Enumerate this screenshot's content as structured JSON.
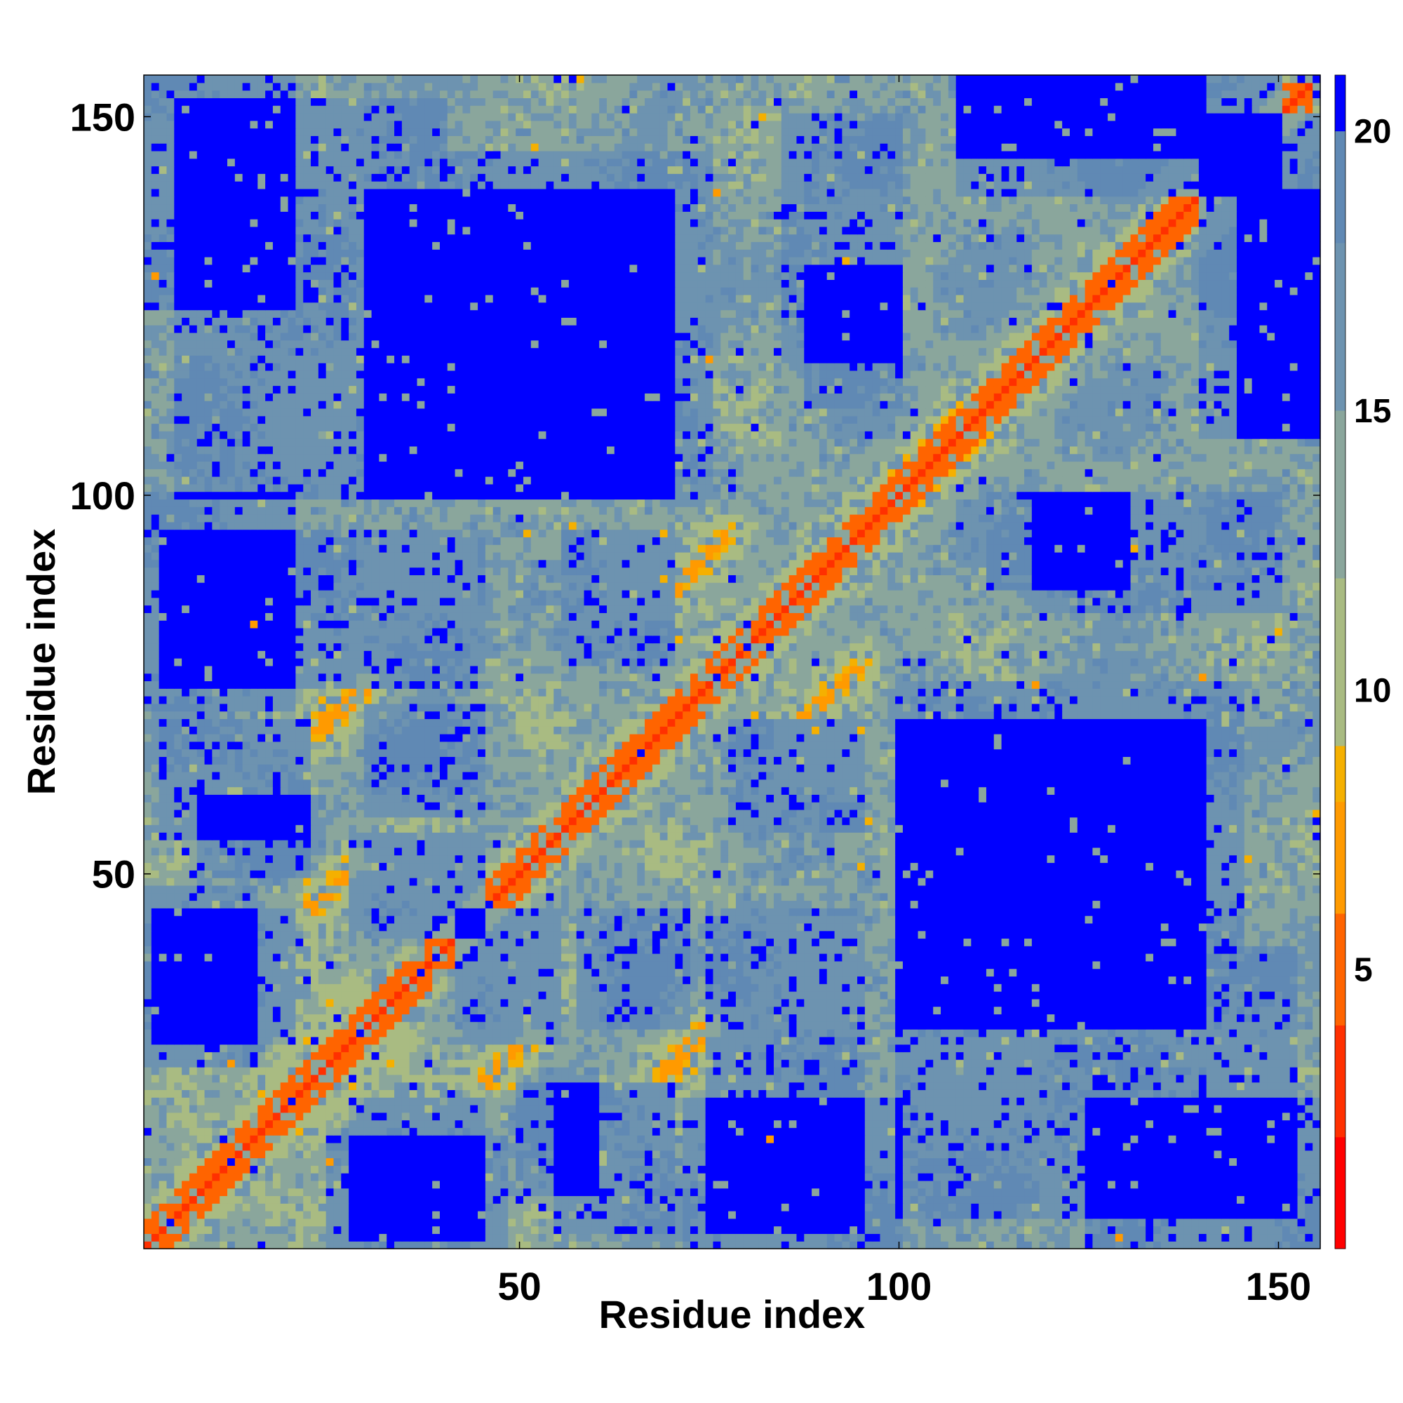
{
  "chart_data": {
    "type": "heatmap",
    "title": "",
    "xlabel": "Residue index",
    "ylabel": "Residue index",
    "xlim": [
      1,
      155
    ],
    "ylim": [
      1,
      155
    ],
    "x_ticks": [
      50,
      100,
      150
    ],
    "y_ticks": [
      50,
      100,
      150
    ],
    "x_tick_labels": [
      "50",
      "100",
      "150"
    ],
    "y_tick_labels": [
      "50",
      "100",
      "150"
    ],
    "n_residues": 155,
    "colorbar": {
      "range": [
        0,
        21
      ],
      "ticks": [
        5,
        10,
        15,
        20
      ],
      "tick_labels": [
        "5",
        "10",
        "15",
        "20"
      ],
      "bands": [
        {
          "from": 0,
          "to": 2,
          "color": "#ff0000"
        },
        {
          "from": 2,
          "to": 4,
          "color": "#ff3000"
        },
        {
          "from": 4,
          "to": 6,
          "color": "#ff6400"
        },
        {
          "from": 6,
          "to": 8,
          "color": "#ff9a00"
        },
        {
          "from": 8,
          "to": 9,
          "color": "#f5b000"
        },
        {
          "from": 9,
          "to": 12,
          "color": "#a9bb82"
        },
        {
          "from": 12,
          "to": 15,
          "color": "#8aa69c"
        },
        {
          "from": 15,
          "to": 18,
          "color": "#6d93b0"
        },
        {
          "from": 18,
          "to": 20,
          "color": "#6089b4"
        },
        {
          "from": 20,
          "to": 21,
          "color": "#0000ff"
        }
      ]
    },
    "contact_segments": [
      {
        "from": [
          1,
          1
        ],
        "to": [
          155,
          155
        ],
        "distance": 3.5,
        "width": 2.5
      },
      {
        "from": [
          15,
          22
        ],
        "to": [
          28,
          35
        ],
        "distance": 6,
        "width": 1.5
      },
      {
        "from": [
          24,
          68
        ],
        "to": [
          30,
          75
        ],
        "distance": 6.5,
        "width": 1.5
      },
      {
        "from": [
          22,
          46
        ],
        "to": [
          28,
          52
        ],
        "distance": 6.5,
        "width": 1.5
      },
      {
        "from": [
          45,
          24
        ],
        "to": [
          52,
          30
        ],
        "distance": 6.5,
        "width": 1.5
      },
      {
        "from": [
          70,
          24
        ],
        "to": [
          77,
          32
        ],
        "distance": 6.5,
        "width": 1.5
      },
      {
        "from": [
          72,
          88
        ],
        "to": [
          79,
          95
        ],
        "distance": 6.5,
        "width": 1.5
      },
      {
        "from": [
          88,
          70
        ],
        "to": [
          95,
          76
        ],
        "distance": 6.5,
        "width": 1.5
      },
      {
        "from": [
          100,
          98
        ],
        "to": [
          110,
          108
        ],
        "distance": 6,
        "width": 2
      }
    ],
    "regions": [
      {
        "x": [
          1,
          20
        ],
        "y": [
          125,
          155
        ],
        "distance": 21
      },
      {
        "x": [
          30,
          70
        ],
        "y": [
          100,
          140
        ],
        "distance": 21
      },
      {
        "x": [
          108,
          150
        ],
        "y": [
          140,
          155
        ],
        "distance": 21
      },
      {
        "x": [
          100,
          145
        ],
        "y": [
          5,
          75
        ],
        "distance": 21
      },
      {
        "x": [
          1,
          20
        ],
        "y": [
          72,
          100
        ],
        "distance": 21
      },
      {
        "x": [
          1,
          15
        ],
        "y": [
          25,
          48
        ],
        "distance": 21
      },
      {
        "x": [
          28,
          45
        ],
        "y": [
          2,
          20
        ],
        "distance": 21
      },
      {
        "x": [
          75,
          95
        ],
        "y": [
          3,
          45
        ],
        "distance": 21
      },
      {
        "x": [
          55,
          70
        ],
        "y": [
          3,
          22
        ],
        "distance": 21
      },
      {
        "x": [
          42,
          55
        ],
        "y": [
          28,
          45
        ],
        "distance": 21
      },
      {
        "x": [
          78,
          95
        ],
        "y": [
          56,
          70
        ],
        "distance": 21
      },
      {
        "x": [
          30,
          45
        ],
        "y": [
          58,
          72
        ],
        "distance": 21
      },
      {
        "x": [
          8,
          22
        ],
        "y": [
          50,
          60
        ],
        "distance": 21
      },
      {
        "x": [
          118,
          150
        ],
        "y": [
          85,
          100
        ],
        "distance": 21
      },
      {
        "x": [
          88,
          100
        ],
        "y": [
          112,
          130
        ],
        "distance": 21
      },
      {
        "x": [
          145,
          155
        ],
        "y": [
          108,
          140
        ],
        "distance": 21
      },
      {
        "x": [
          132,
          152
        ],
        "y": [
          5,
          40
        ],
        "distance": 21
      },
      {
        "x": [
          30,
          42
        ],
        "y": [
          2,
          12
        ],
        "distance": 21
      }
    ]
  }
}
